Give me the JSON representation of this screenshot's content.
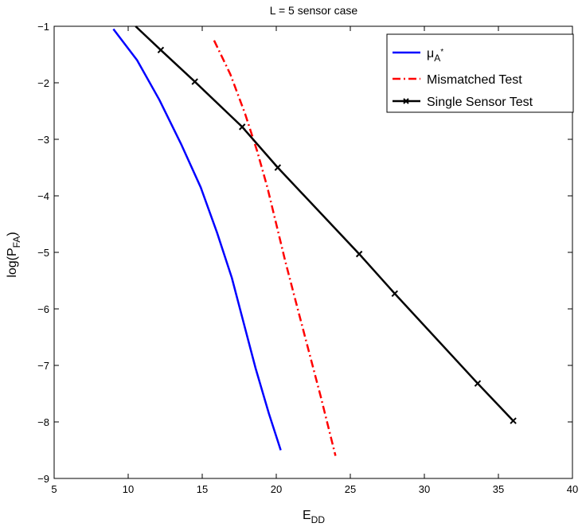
{
  "chart_data": {
    "type": "line",
    "title": "L = 5 sensor case",
    "xlabel": {
      "base": "E",
      "sub": "DD"
    },
    "ylabel": {
      "base": "log(P",
      "sub": "FA",
      "suffix": ")"
    },
    "xlim": [
      5,
      40
    ],
    "ylim": [
      -9,
      -1
    ],
    "xticks": [
      5,
      10,
      15,
      20,
      25,
      30,
      35,
      40
    ],
    "yticks": [
      -9,
      -8,
      -7,
      -6,
      -5,
      -4,
      -3,
      -2,
      -1
    ],
    "grid": false,
    "legend_position": "top-right",
    "series": [
      {
        "name": "μA*",
        "legend_parts": {
          "base": "μ",
          "sub": "A",
          "sup": "*"
        },
        "color": "#0000ff",
        "style": "solid",
        "marker": "none",
        "x": [
          9.0,
          10.6,
          12.1,
          13.6,
          14.9,
          16.0,
          17.0,
          17.8,
          18.6,
          19.5,
          20.3
        ],
        "y": [
          -1.05,
          -1.6,
          -2.3,
          -3.1,
          -3.85,
          -4.65,
          -5.45,
          -6.25,
          -7.05,
          -7.85,
          -8.5
        ]
      },
      {
        "name": "Mismatched Test",
        "color": "#ff0000",
        "style": "dashdot",
        "marker": "none",
        "x": [
          15.8,
          16.9,
          17.9,
          18.7,
          19.4,
          20.0,
          20.6,
          21.4,
          22.2,
          23.0,
          24.0
        ],
        "y": [
          -1.25,
          -1.85,
          -2.55,
          -3.2,
          -3.85,
          -4.5,
          -5.15,
          -5.95,
          -6.75,
          -7.55,
          -8.6
        ]
      },
      {
        "name": "Single Sensor Test",
        "color": "#000000",
        "style": "solid",
        "marker": "x",
        "x": [
          10.5,
          12.2,
          14.5,
          17.7,
          20.1,
          25.6,
          28.0,
          33.6,
          36.0
        ],
        "y": [
          -1.0,
          -1.42,
          -1.98,
          -2.78,
          -3.5,
          -5.03,
          -5.73,
          -7.32,
          -7.98
        ],
        "marker_indices": [
          1,
          2,
          3,
          4,
          5,
          6,
          7,
          8
        ]
      }
    ]
  }
}
